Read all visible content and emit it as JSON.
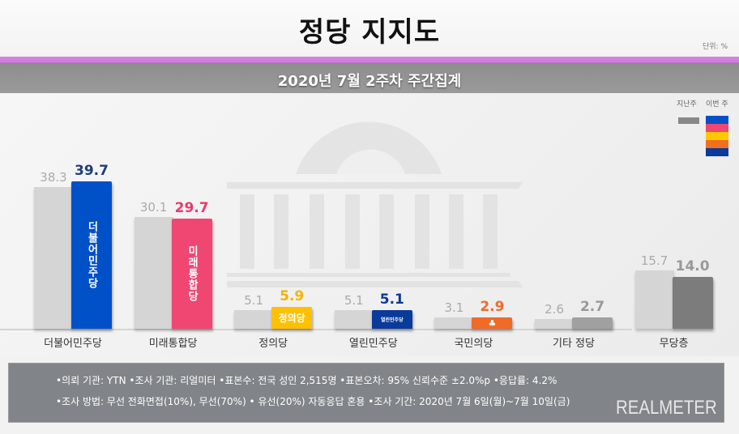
{
  "header": {
    "title": "정당 지지도",
    "unit": "단위: %",
    "subtitle": "2020년 7월 2주차 주간집계"
  },
  "legend": {
    "last_week_label": "지난주",
    "this_week_label": "이번 주",
    "last_week_color": "#888888",
    "this_week_colors": [
      "#0050c8",
      "#ef4672",
      "#ffc800",
      "#f07020",
      "#0a3a9a"
    ]
  },
  "chart_data": {
    "type": "bar",
    "title": "정당 지지도",
    "subtitle": "2020년 7월 2주차 주간집계",
    "xlabel": "",
    "ylabel": "단위: %",
    "categories": [
      "더불어민주당",
      "미래통합당",
      "정의당",
      "열린민주당",
      "국민의당",
      "기타 정당",
      "무당층"
    ],
    "series": [
      {
        "name": "지난주",
        "values": [
          38.3,
          30.1,
          5.1,
          5.1,
          3.1,
          2.6,
          15.7
        ],
        "color": "#d5d5d5"
      },
      {
        "name": "이번 주",
        "values": [
          39.7,
          29.7,
          5.9,
          5.1,
          2.9,
          2.7,
          14.0
        ],
        "colors": [
          "#0050c8",
          "#ef4672",
          "#ffc000",
          "#0a3a9a",
          "#f06a28",
          "#a0a0a0",
          "#7c7c7c"
        ]
      }
    ],
    "ylim": [
      0,
      45
    ],
    "grid": false,
    "legend_position": "top-right"
  },
  "bars": [
    {
      "label": "더불어민주당",
      "prev": "38.3",
      "cur": "39.7",
      "prev_v": 38.3,
      "cur_v": 39.7,
      "color": "#0050c8",
      "val_color": "#1f3d7a",
      "logo": "더불어민주당",
      "logo_type": "vertical"
    },
    {
      "label": "미래통합당",
      "prev": "30.1",
      "cur": "29.7",
      "prev_v": 30.1,
      "cur_v": 29.7,
      "color": "#ef4672",
      "val_color": "#ea3a6a",
      "logo": "미래통합당",
      "logo_type": "vertical"
    },
    {
      "label": "정의당",
      "prev": "5.1",
      "cur": "5.9",
      "prev_v": 5.1,
      "cur_v": 5.9,
      "color": "#ffc000",
      "val_color": "#f5b400",
      "logo": "정의당",
      "logo_type": "horizontal"
    },
    {
      "label": "열린민주당",
      "prev": "5.1",
      "cur": "5.1",
      "prev_v": 5.1,
      "cur_v": 5.1,
      "color": "#0a3a9a",
      "val_color": "#0a3a9a",
      "logo": "열린민주당",
      "logo_type": "small"
    },
    {
      "label": "국민의당",
      "prev": "3.1",
      "cur": "2.9",
      "prev_v": 3.1,
      "cur_v": 2.9,
      "color": "#f06a28",
      "val_color": "#f06a28",
      "logo": "♣",
      "logo_type": "icon"
    },
    {
      "label": "기타 정당",
      "prev": "2.6",
      "cur": "2.7",
      "prev_v": 2.6,
      "cur_v": 2.7,
      "color": "#a0a0a0",
      "val_color": "#999999",
      "logo": "",
      "logo_type": "none"
    },
    {
      "label": "무당층",
      "prev": "15.7",
      "cur": "14.0",
      "prev_v": 15.7,
      "cur_v": 14.0,
      "color": "#7c7c7c",
      "val_color": "#999999",
      "logo": "",
      "logo_type": "none"
    }
  ],
  "footer": {
    "line1": "•의뢰 기관: YTN •조사 기관: 리얼미터 •표본수: 전국 성인 2,515명 •표본오차: 95% 신뢰수준 ±2.0%p •응답률: 4.2%",
    "line2": "•조사 방법: 무선 전화면접(10%), 무선(70%) • 유선(20%) 자동응답 혼용  •조사 기간: 2020년 7월 6일(월)~7월 10일(금)",
    "brand": "REALMETER"
  }
}
